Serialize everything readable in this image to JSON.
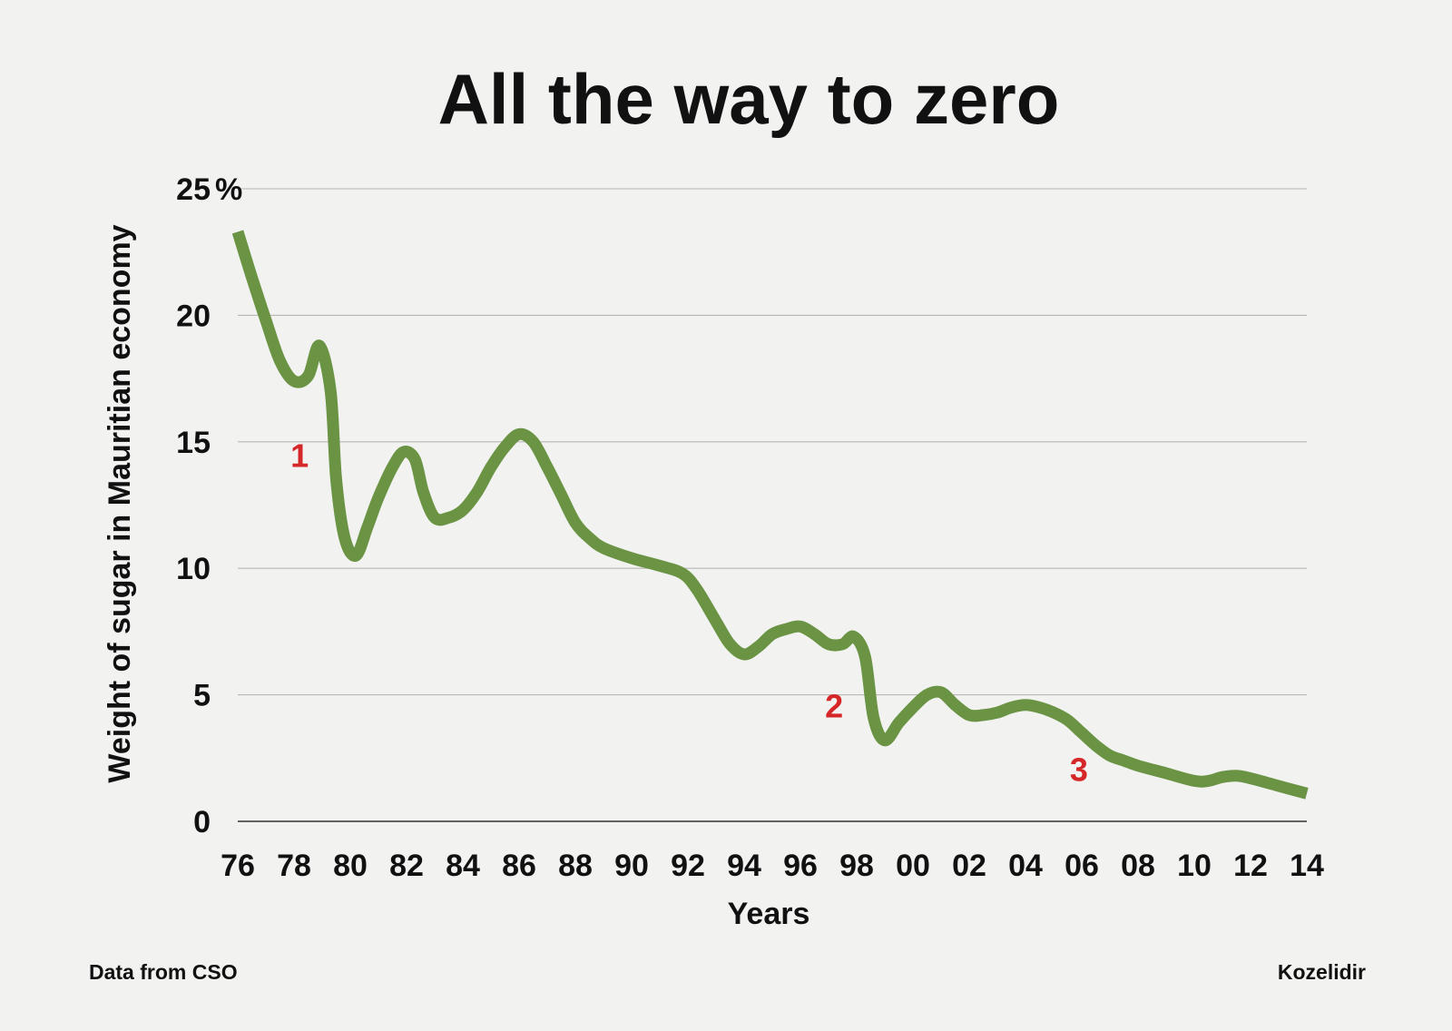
{
  "chart_data": {
    "type": "line",
    "title": "All the way to zero",
    "xlabel": "Years",
    "ylabel": "Weight of sugar in Mauritian economy",
    "x_tick_labels": [
      "76",
      "78",
      "80",
      "82",
      "84",
      "86",
      "88",
      "90",
      "92",
      "94",
      "96",
      "98",
      "00",
      "02",
      "04",
      "06",
      "08",
      "10",
      "12",
      "14"
    ],
    "x_tick_years": [
      1976,
      1978,
      1980,
      1982,
      1984,
      1986,
      1988,
      1990,
      1992,
      1994,
      1996,
      1998,
      2000,
      2002,
      2004,
      2006,
      2008,
      2010,
      2012,
      2014
    ],
    "y_ticks": [
      0,
      5,
      10,
      15,
      20,
      25
    ],
    "y_tick_labels": [
      "0",
      "5",
      "10",
      "15",
      "20",
      "25"
    ],
    "y_unit": "%",
    "xlim": [
      1976,
      2014
    ],
    "ylim": [
      0,
      25
    ],
    "grid": true,
    "series": [
      {
        "name": "Weight of sugar in Mauritian economy",
        "color": "#6a9443",
        "points": [
          [
            1976.0,
            23.3
          ],
          [
            1976.5,
            21.5
          ],
          [
            1977.0,
            19.8
          ],
          [
            1977.5,
            18.2
          ],
          [
            1978.0,
            17.4
          ],
          [
            1978.5,
            17.6
          ],
          [
            1978.9,
            18.8
          ],
          [
            1979.3,
            17.0
          ],
          [
            1979.5,
            13.5
          ],
          [
            1979.8,
            11.2
          ],
          [
            1980.2,
            10.5
          ],
          [
            1980.6,
            11.6
          ],
          [
            1981.0,
            12.8
          ],
          [
            1981.5,
            14.0
          ],
          [
            1981.9,
            14.6
          ],
          [
            1982.3,
            14.3
          ],
          [
            1982.6,
            13.0
          ],
          [
            1983.0,
            12.0
          ],
          [
            1983.5,
            12.0
          ],
          [
            1984.0,
            12.3
          ],
          [
            1984.5,
            13.0
          ],
          [
            1985.0,
            14.0
          ],
          [
            1985.5,
            14.8
          ],
          [
            1986.0,
            15.3
          ],
          [
            1986.5,
            15.0
          ],
          [
            1987.0,
            14.0
          ],
          [
            1987.5,
            12.9
          ],
          [
            1988.0,
            11.8
          ],
          [
            1988.5,
            11.2
          ],
          [
            1989.0,
            10.8
          ],
          [
            1990.0,
            10.4
          ],
          [
            1991.0,
            10.1
          ],
          [
            1991.8,
            9.8
          ],
          [
            1992.3,
            9.2
          ],
          [
            1993.0,
            7.9
          ],
          [
            1993.5,
            7.0
          ],
          [
            1994.0,
            6.6
          ],
          [
            1994.5,
            6.9
          ],
          [
            1995.0,
            7.4
          ],
          [
            1995.5,
            7.6
          ],
          [
            1996.0,
            7.7
          ],
          [
            1996.5,
            7.4
          ],
          [
            1997.0,
            7.0
          ],
          [
            1997.5,
            7.0
          ],
          [
            1997.9,
            7.3
          ],
          [
            1998.3,
            6.5
          ],
          [
            1998.6,
            4.1
          ],
          [
            1999.0,
            3.2
          ],
          [
            1999.5,
            3.9
          ],
          [
            2000.0,
            4.5
          ],
          [
            2000.5,
            5.0
          ],
          [
            2001.0,
            5.1
          ],
          [
            2001.5,
            4.6
          ],
          [
            2002.0,
            4.2
          ],
          [
            2002.5,
            4.2
          ],
          [
            2003.0,
            4.3
          ],
          [
            2003.5,
            4.5
          ],
          [
            2004.0,
            4.6
          ],
          [
            2004.5,
            4.5
          ],
          [
            2005.0,
            4.3
          ],
          [
            2005.5,
            4.0
          ],
          [
            2006.0,
            3.5
          ],
          [
            2006.5,
            3.0
          ],
          [
            2007.0,
            2.6
          ],
          [
            2007.5,
            2.4
          ],
          [
            2008.0,
            2.2
          ],
          [
            2009.0,
            1.9
          ],
          [
            2010.0,
            1.6
          ],
          [
            2010.5,
            1.6
          ],
          [
            2011.0,
            1.75
          ],
          [
            2011.5,
            1.8
          ],
          [
            2012.0,
            1.7
          ],
          [
            2013.0,
            1.4
          ],
          [
            2014.0,
            1.1
          ]
        ]
      }
    ],
    "annotations": [
      {
        "text": "1",
        "x": 1978.2,
        "y": 14.0,
        "color": "#d62728"
      },
      {
        "text": "2",
        "x": 1997.2,
        "y": 4.1,
        "color": "#d62728"
      },
      {
        "text": "3",
        "x": 2005.9,
        "y": 1.6,
        "color": "#d62728"
      }
    ]
  },
  "footer": {
    "source": "Data from CSO",
    "credit": "Kozelidir"
  }
}
